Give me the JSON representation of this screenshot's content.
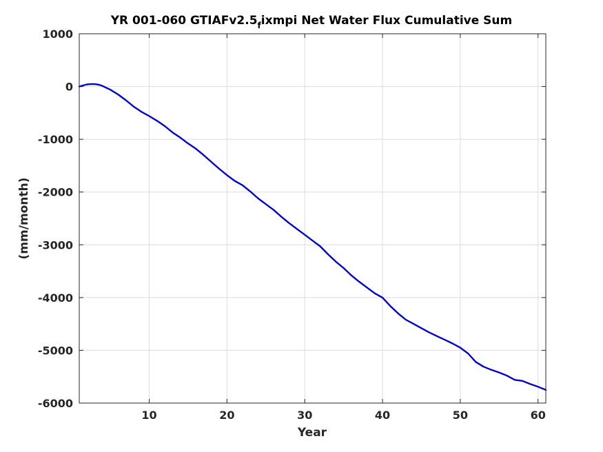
{
  "chart_data": {
    "type": "line",
    "title_main": "YR 001-060 GTIAFv2.5",
    "title_sub": "f",
    "title_rest": "ixmpi Net Water Flux Cumulative Sum",
    "xlabel": "Year",
    "ylabel": "(mm/month)",
    "xlim": [
      1,
      61
    ],
    "ylim": [
      -6000,
      1000
    ],
    "xticks": [
      10,
      20,
      30,
      40,
      50,
      60
    ],
    "yticks": [
      1000,
      0,
      -1000,
      -2000,
      -3000,
      -4000,
      -5000,
      -6000
    ],
    "grid": true,
    "series": [
      {
        "color": "#0000dd",
        "x": [
          1,
          1.5,
          2,
          2.5,
          3,
          3.5,
          4,
          5,
          6,
          7,
          8,
          9,
          10,
          11,
          12,
          13,
          14,
          15,
          16,
          17,
          18,
          19,
          20,
          21,
          22,
          23,
          24,
          25,
          26,
          27,
          28,
          29,
          30,
          31,
          32,
          33,
          34,
          35,
          36,
          37,
          38,
          39,
          40,
          41,
          42,
          43,
          44,
          45,
          46,
          47,
          48,
          49,
          50,
          51,
          52,
          53,
          54,
          55,
          56,
          57,
          58,
          59,
          60,
          61
        ],
        "y": [
          0,
          20,
          40,
          45,
          45,
          35,
          10,
          -60,
          -150,
          -260,
          -380,
          -480,
          -560,
          -650,
          -750,
          -870,
          -970,
          -1080,
          -1180,
          -1300,
          -1430,
          -1560,
          -1680,
          -1790,
          -1870,
          -1990,
          -2120,
          -2230,
          -2340,
          -2470,
          -2590,
          -2700,
          -2810,
          -2920,
          -3030,
          -3180,
          -3320,
          -3440,
          -3580,
          -3700,
          -3810,
          -3920,
          -4000,
          -4160,
          -4300,
          -4420,
          -4500,
          -4580,
          -4660,
          -4730,
          -4800,
          -4870,
          -4950,
          -5060,
          -5220,
          -5310,
          -5370,
          -5420,
          -5480,
          -5560,
          -5580,
          -5640,
          -5690,
          -5750
        ]
      }
    ]
  }
}
